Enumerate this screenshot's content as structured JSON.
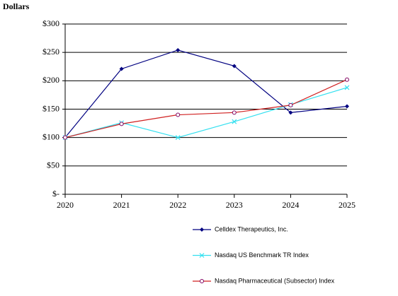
{
  "chart_data": {
    "type": "line",
    "y_label": "Dollars",
    "x": [
      2020,
      2021,
      2022,
      2023,
      2024,
      2025
    ],
    "xlim": [
      2020,
      2025
    ],
    "xticks": [
      2020,
      2021,
      2022,
      2023,
      2024,
      2025
    ],
    "ylim": [
      0,
      300
    ],
    "yticks": [
      {
        "value": 0,
        "label": "$-"
      },
      {
        "value": 50,
        "label": "$50"
      },
      {
        "value": 100,
        "label": "$100"
      },
      {
        "value": 150,
        "label": "$150"
      },
      {
        "value": 200,
        "label": "$200"
      },
      {
        "value": 250,
        "label": "$250"
      },
      {
        "value": 300,
        "label": "$300"
      }
    ],
    "grid": true,
    "legend": "bottom",
    "series": [
      {
        "name": "Celldex Therapeutics, Inc.",
        "color": "#000080",
        "marker": "diamond",
        "values": [
          100,
          221,
          254,
          226,
          144,
          155
        ]
      },
      {
        "name": "Nasdaq US Benchmark TR Index",
        "color": "#33e0f0",
        "marker": "x",
        "values": [
          100,
          126,
          100,
          128,
          158,
          188
        ]
      },
      {
        "name": "Nasdaq Pharmaceutical (Subsector) Index",
        "color": "#d02020",
        "marker": "circle",
        "values": [
          100,
          124,
          140,
          144,
          157,
          202
        ]
      }
    ]
  }
}
